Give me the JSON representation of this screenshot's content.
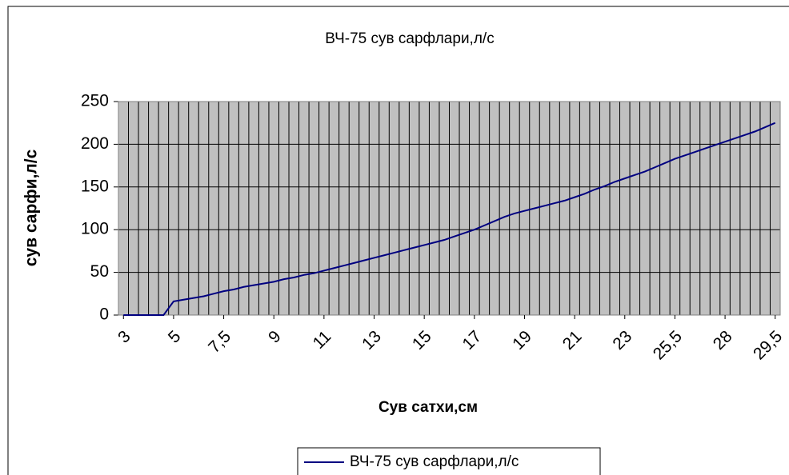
{
  "chart_data": {
    "type": "line",
    "title": "ВЧ-75 сув сарфлари,л/с",
    "x_label": "Сув сатхи,см",
    "y_label": "сув сарфи,л/с",
    "categories": [
      "3",
      null,
      null,
      null,
      null,
      "5",
      null,
      null,
      null,
      null,
      "7,5",
      null,
      null,
      null,
      null,
      "9",
      null,
      null,
      null,
      null,
      "11",
      null,
      null,
      null,
      null,
      "13",
      null,
      null,
      null,
      null,
      "15",
      null,
      null,
      null,
      null,
      "17",
      null,
      null,
      null,
      null,
      "19",
      null,
      null,
      null,
      null,
      "21",
      null,
      null,
      null,
      null,
      "23",
      null,
      null,
      null,
      null,
      "25,5",
      null,
      null,
      null,
      null,
      "28",
      null,
      null,
      null,
      null,
      "29,5"
    ],
    "series": [
      {
        "name": "ВЧ-75 сув сарфлари,л/с",
        "color": "#000080",
        "values": [
          0,
          0,
          0,
          0,
          0,
          16,
          18,
          20,
          22,
          25,
          28,
          30,
          33,
          35,
          37,
          39,
          42,
          44,
          47,
          49,
          52,
          55,
          58,
          61,
          64,
          67,
          70,
          73,
          76,
          79,
          82,
          85,
          88,
          92,
          96,
          100,
          105,
          110,
          115,
          119,
          122,
          125,
          128,
          131,
          134,
          138,
          142,
          147,
          151,
          156,
          160,
          164,
          168,
          173,
          178,
          183,
          187,
          191,
          195,
          199,
          203,
          207,
          211,
          215,
          220,
          225
        ]
      }
    ],
    "ylim": [
      0,
      250
    ],
    "yticks": [
      0,
      50,
      100,
      150,
      200,
      250
    ],
    "grid": true,
    "legend": "bottom"
  }
}
